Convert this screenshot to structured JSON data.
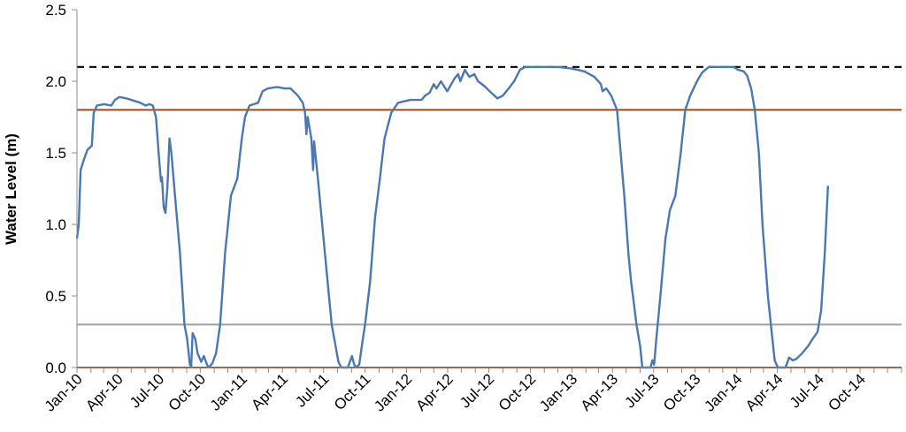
{
  "chart_data": {
    "type": "line",
    "title": "",
    "xlabel": "",
    "ylabel": "Water Level (m)",
    "ylim": [
      0,
      2.5
    ],
    "yticks": [
      "0.0",
      "0.5",
      "1.0",
      "1.5",
      "2.0",
      "2.5"
    ],
    "xlim": [
      "2010-01-01",
      "2015-01-01"
    ],
    "xticks": [
      {
        "label": "Jan-10",
        "date": "2010-01-01"
      },
      {
        "label": "Apr-10",
        "date": "2010-04-01"
      },
      {
        "label": "Jul-10",
        "date": "2010-07-01"
      },
      {
        "label": "Oct-10",
        "date": "2010-10-01"
      },
      {
        "label": "Jan-11",
        "date": "2011-01-01"
      },
      {
        "label": "Apr-11",
        "date": "2011-04-01"
      },
      {
        "label": "Jul-11",
        "date": "2011-07-01"
      },
      {
        "label": "Oct-11",
        "date": "2011-10-01"
      },
      {
        "label": "Jan-12",
        "date": "2012-01-01"
      },
      {
        "label": "Apr-12",
        "date": "2012-04-01"
      },
      {
        "label": "Jul-12",
        "date": "2012-07-01"
      },
      {
        "label": "Oct-12",
        "date": "2012-10-01"
      },
      {
        "label": "Jan-13",
        "date": "2013-01-01"
      },
      {
        "label": "Apr-13",
        "date": "2013-04-01"
      },
      {
        "label": "Jul-13",
        "date": "2013-07-01"
      },
      {
        "label": "Oct-13",
        "date": "2013-10-01"
      },
      {
        "label": "Jan-14",
        "date": "2014-01-01"
      },
      {
        "label": "Apr-14",
        "date": "2014-04-01"
      },
      {
        "label": "Jul-14",
        "date": "2014-07-01"
      },
      {
        "label": "Oct-14",
        "date": "2014-10-01"
      }
    ],
    "grid": false,
    "reference_lines": [
      {
        "y": 2.1,
        "color": "#000000",
        "style": "dashed"
      },
      {
        "y": 1.8,
        "color": "#a0461e",
        "style": "solid"
      },
      {
        "y": 0.3,
        "color": "#a0a0a0",
        "style": "solid"
      },
      {
        "y": 0.0,
        "color": "#a0461e",
        "style": "solid"
      }
    ],
    "series": [
      {
        "color": "#4a78b0",
        "points": [
          [
            "2010-01-01",
            0.9
          ],
          [
            "2010-01-05",
            1.0
          ],
          [
            "2010-01-09",
            1.38
          ],
          [
            "2010-01-16",
            1.45
          ],
          [
            "2010-01-24",
            1.52
          ],
          [
            "2010-02-03",
            1.55
          ],
          [
            "2010-02-07",
            1.78
          ],
          [
            "2010-02-14",
            1.83
          ],
          [
            "2010-03-02",
            1.84
          ],
          [
            "2010-03-18",
            1.83
          ],
          [
            "2010-03-26",
            1.87
          ],
          [
            "2010-04-05",
            1.89
          ],
          [
            "2010-04-21",
            1.88
          ],
          [
            "2010-05-11",
            1.86
          ],
          [
            "2010-05-21",
            1.85
          ],
          [
            "2010-06-02",
            1.83
          ],
          [
            "2010-06-10",
            1.84
          ],
          [
            "2010-06-18",
            1.83
          ],
          [
            "2010-06-25",
            1.75
          ],
          [
            "2010-07-02",
            1.45
          ],
          [
            "2010-07-06",
            1.3
          ],
          [
            "2010-07-08",
            1.33
          ],
          [
            "2010-07-12",
            1.12
          ],
          [
            "2010-07-16",
            1.08
          ],
          [
            "2010-07-20",
            1.25
          ],
          [
            "2010-07-25",
            1.6
          ],
          [
            "2010-07-29",
            1.5
          ],
          [
            "2010-08-06",
            1.2
          ],
          [
            "2010-08-17",
            0.8
          ],
          [
            "2010-08-27",
            0.3
          ],
          [
            "2010-09-02",
            0.2
          ],
          [
            "2010-09-08",
            0.02
          ],
          [
            "2010-09-11",
            0.01
          ],
          [
            "2010-09-14",
            0.24
          ],
          [
            "2010-09-20",
            0.2
          ],
          [
            "2010-09-25",
            0.1
          ],
          [
            "2010-10-03",
            0.04
          ],
          [
            "2010-10-09",
            0.08
          ],
          [
            "2010-10-16",
            0.02
          ],
          [
            "2010-10-20",
            0.0
          ],
          [
            "2010-10-28",
            0.03
          ],
          [
            "2010-11-05",
            0.1
          ],
          [
            "2010-11-14",
            0.3
          ],
          [
            "2010-11-25",
            0.8
          ],
          [
            "2010-12-08",
            1.2
          ],
          [
            "2010-12-22",
            1.32
          ],
          [
            "2011-01-01",
            1.6
          ],
          [
            "2011-01-08",
            1.75
          ],
          [
            "2011-01-18",
            1.83
          ],
          [
            "2011-02-06",
            1.85
          ],
          [
            "2011-02-16",
            1.93
          ],
          [
            "2011-02-28",
            1.95
          ],
          [
            "2011-03-20",
            1.96
          ],
          [
            "2011-04-05",
            1.95
          ],
          [
            "2011-04-19",
            1.95
          ],
          [
            "2011-05-05",
            1.9
          ],
          [
            "2011-05-16",
            1.85
          ],
          [
            "2011-05-21",
            1.78
          ],
          [
            "2011-05-24",
            1.63
          ],
          [
            "2011-05-27",
            1.75
          ],
          [
            "2011-06-04",
            1.6
          ],
          [
            "2011-06-08",
            1.38
          ],
          [
            "2011-06-10",
            1.58
          ],
          [
            "2011-06-19",
            1.3
          ],
          [
            "2011-07-04",
            0.8
          ],
          [
            "2011-07-19",
            0.3
          ],
          [
            "2011-08-03",
            0.04
          ],
          [
            "2011-08-09",
            0.0
          ],
          [
            "2011-08-24",
            0.0
          ],
          [
            "2011-09-02",
            0.08
          ],
          [
            "2011-09-07",
            0.02
          ],
          [
            "2011-09-10",
            0.0
          ],
          [
            "2011-09-18",
            0.02
          ],
          [
            "2011-09-26",
            0.2
          ],
          [
            "2011-10-01",
            0.3
          ],
          [
            "2011-10-12",
            0.6
          ],
          [
            "2011-10-23",
            1.05
          ],
          [
            "2011-11-02",
            1.3
          ],
          [
            "2011-11-13",
            1.6
          ],
          [
            "2011-11-28",
            1.78
          ],
          [
            "2011-12-13",
            1.85
          ],
          [
            "2012-01-09",
            1.87
          ],
          [
            "2012-02-03",
            1.87
          ],
          [
            "2012-02-11",
            1.9
          ],
          [
            "2012-02-21",
            1.92
          ],
          [
            "2012-03-01",
            1.98
          ],
          [
            "2012-03-07",
            1.95
          ],
          [
            "2012-03-17",
            2.0
          ],
          [
            "2012-03-31",
            1.93
          ],
          [
            "2012-04-16",
            2.02
          ],
          [
            "2012-04-24",
            2.05
          ],
          [
            "2012-04-29",
            2.0
          ],
          [
            "2012-05-09",
            2.08
          ],
          [
            "2012-05-19",
            2.03
          ],
          [
            "2012-05-30",
            2.05
          ],
          [
            "2012-06-07",
            2.0
          ],
          [
            "2012-06-20",
            1.97
          ],
          [
            "2012-07-03",
            1.93
          ],
          [
            "2012-07-20",
            1.88
          ],
          [
            "2012-08-01",
            1.9
          ],
          [
            "2012-08-14",
            1.95
          ],
          [
            "2012-08-26",
            2.0
          ],
          [
            "2012-09-08",
            2.08
          ],
          [
            "2012-09-20",
            2.1
          ],
          [
            "2012-12-01",
            2.1
          ],
          [
            "2012-12-30",
            2.09
          ],
          [
            "2013-01-28",
            2.07
          ],
          [
            "2013-02-20",
            2.03
          ],
          [
            "2013-03-06",
            1.98
          ],
          [
            "2013-03-10",
            1.93
          ],
          [
            "2013-03-18",
            1.95
          ],
          [
            "2013-03-29",
            1.9
          ],
          [
            "2013-04-11",
            1.8
          ],
          [
            "2013-04-19",
            1.5
          ],
          [
            "2013-04-27",
            1.2
          ],
          [
            "2013-05-06",
            0.8
          ],
          [
            "2013-05-12",
            0.6
          ],
          [
            "2013-05-19",
            0.43
          ],
          [
            "2013-05-24",
            0.3
          ],
          [
            "2013-06-01",
            0.15
          ],
          [
            "2013-06-06",
            0.0
          ],
          [
            "2013-06-24",
            0.0
          ],
          [
            "2013-06-28",
            0.05
          ],
          [
            "2013-07-02",
            0.02
          ],
          [
            "2013-07-07",
            0.2
          ],
          [
            "2013-07-16",
            0.5
          ],
          [
            "2013-07-27",
            0.9
          ],
          [
            "2013-08-06",
            1.1
          ],
          [
            "2013-08-18",
            1.2
          ],
          [
            "2013-08-30",
            1.5
          ],
          [
            "2013-09-09",
            1.8
          ],
          [
            "2013-09-20",
            1.9
          ],
          [
            "2013-10-05",
            2.0
          ],
          [
            "2013-10-16",
            2.06
          ],
          [
            "2013-10-31",
            2.1
          ],
          [
            "2013-12-25",
            2.1
          ],
          [
            "2014-01-04",
            2.08
          ],
          [
            "2014-01-16",
            2.07
          ],
          [
            "2014-01-24",
            2.04
          ],
          [
            "2014-02-02",
            1.95
          ],
          [
            "2014-02-10",
            1.8
          ],
          [
            "2014-02-19",
            1.5
          ],
          [
            "2014-02-27",
            1.0
          ],
          [
            "2014-03-11",
            0.5
          ],
          [
            "2014-03-21",
            0.2
          ],
          [
            "2014-03-26",
            0.05
          ],
          [
            "2014-04-02",
            0.0
          ],
          [
            "2014-04-19",
            0.0
          ],
          [
            "2014-04-27",
            0.07
          ],
          [
            "2014-05-05",
            0.05
          ],
          [
            "2014-05-13",
            0.06
          ],
          [
            "2014-05-26",
            0.1
          ],
          [
            "2014-06-08",
            0.15
          ],
          [
            "2014-06-18",
            0.2
          ],
          [
            "2014-06-29",
            0.25
          ],
          [
            "2014-07-07",
            0.4
          ],
          [
            "2014-07-15",
            0.8
          ],
          [
            "2014-07-22",
            1.27
          ]
        ]
      }
    ]
  }
}
